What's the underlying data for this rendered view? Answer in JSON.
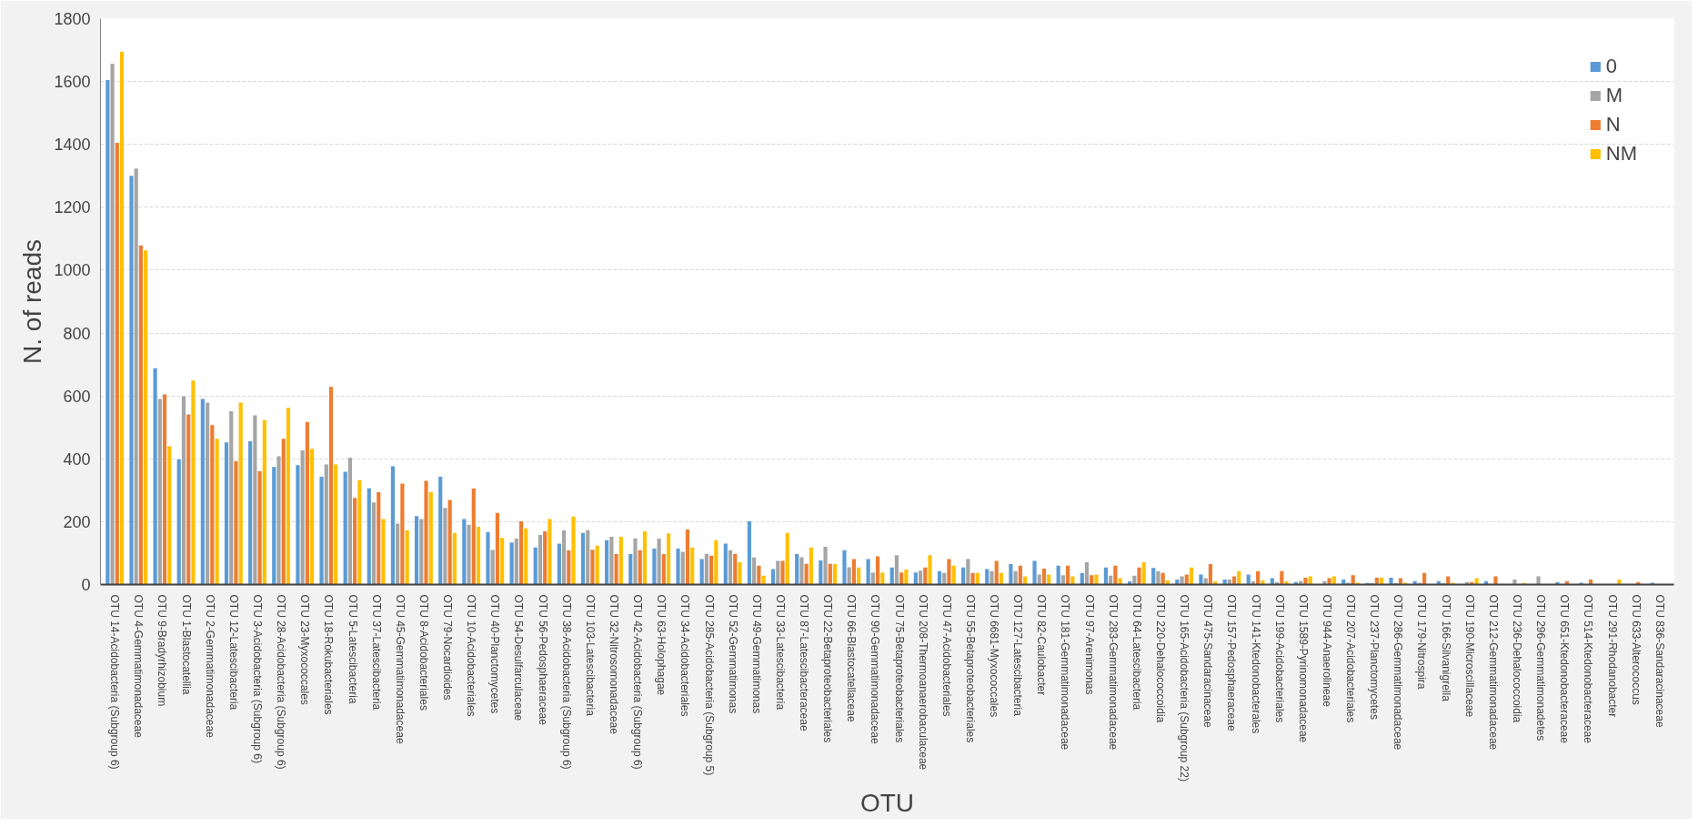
{
  "chart_data": {
    "type": "bar",
    "xlabel": "OTU",
    "ylabel": "N. of reads",
    "ylim": [
      0,
      1800
    ],
    "yticks": [
      0,
      200,
      400,
      600,
      800,
      1000,
      1200,
      1400,
      1600,
      1800
    ],
    "grid": "y",
    "legend": "top right",
    "categories": [
      "OTU 14-Acidobacteria (Subgroup 6)",
      "OTU 4-Gemmatimonadaceae",
      "OTU 9-Bradyrhizobium",
      "OTU 1-Blastocatellia",
      "OTU 2-Gemmatimonadaceae",
      "OTU 12-Latescibacteria",
      "OTU 3-Acidobacteria (Subgroup 6)",
      "OTU 28-Acidobacteria (Subgroup 6)",
      "OTU 23-Myxococcales",
      "OTU 18-Rokubacteriales",
      "OTU 5-Latescibacteria",
      "OTU 37-Latescibacteria",
      "OTU 45-Gemmatimonadaceae",
      "OTU 8-Acidobacteriales",
      "OTU 79-Nocardioides",
      "OTU 10-Acidobacteriales",
      "OTU 40-Planctomycetes",
      "OTU 54-Desulfarculaceae",
      "OTU 56-Pedosphaeraceae",
      "OTU 38-Acidobacteria (Subgroup 6)",
      "OTU 103-Latescibacteria",
      "OTU 32-Nitrosomonadaceae",
      "OTU 42-Acidobacteria (Subgroup 6)",
      "OTU 63-Holophagae",
      "OTU 34-Acidobacteriales",
      "OTU 285-Acidobacteria (Subgroup 5)",
      "OTU 52-Gemmatimonas",
      "OTU 49-Gemmatimonas",
      "OTU 33-Latescibacteria",
      "OTU 87-Latescibacteraceae",
      "OTU 22-Betaproteobacteriales",
      "OTU 66-Blastocatellaceae",
      "OTU 90-Gemmatimonadaceae",
      "OTU 75-Betaproteobacteriales",
      "OTU 208-Thermoanaerobaculaceae",
      "OTU 47-Acidobacteriales",
      "OTU 55-Betaproteobacteriales",
      "OTU 6681-Myxococcales",
      "OTU 127-Latescibacteria",
      "OTU 82-Caulobacter",
      "OTU 181-Gemmatimonadaceae",
      "OTU 97-Arenimonas",
      "OTU 283-Gemmatimonadaceae",
      "OTU 64-Latescibacteria",
      "OTU 220-Dehalococcoidia",
      "OTU 165-Acidobacteria (Subgroup 22)",
      "OTU 475-Sandaracinaceae",
      "OTU 157-Pedosphaeraceae",
      "OTU 141-Ktedonobacterales",
      "OTU 199-Acidobacteriales",
      "OTU 1589-Pyrinomonadaceae",
      "OTU 944-Anaerolineae",
      "OTU 207-Acidobacteriales",
      "OTU 237-Planctomycetes",
      "OTU 286-Gemmatimonadaceae",
      "OTU 179-Nitrospira",
      "OTU 166-Silvanigrella",
      "OTU 190-Microscillaceae",
      "OTU 212-Gemmatimonadaceae",
      "OTU 236-Dehalococcoidia",
      "OTU 296-Gemmatimonadetes",
      "OTU 651-Ktedonobacteraceae",
      "OTU 514-Ktedonobacteraceae",
      "OTU 291-Rhodanobacter",
      "OTU 633-Alterococcus",
      "OTU 836-Sandaracinaceae"
    ],
    "series": [
      {
        "name": "0",
        "color": "#5b9bd5",
        "values": [
          1605,
          1300,
          688,
          398,
          590,
          452,
          456,
          374,
          380,
          343,
          359,
          306,
          376,
          218,
          343,
          208,
          167,
          134,
          118,
          130,
          164,
          141,
          97,
          114,
          114,
          81,
          130,
          201,
          49,
          97,
          77,
          109,
          81,
          54,
          38,
          43,
          54,
          49,
          65,
          75,
          60,
          37,
          54,
          10,
          53,
          16,
          32,
          16,
          32,
          20,
          8,
          0,
          16,
          5,
          22,
          11,
          11,
          0,
          11,
          0,
          0,
          8,
          6,
          0,
          0,
          6
        ]
      },
      {
        "name": "M",
        "color": "#a5a5a5",
        "values": [
          1657,
          1323,
          590,
          598,
          579,
          551,
          538,
          408,
          427,
          382,
          403,
          261,
          194,
          208,
          244,
          190,
          110,
          146,
          158,
          172,
          173,
          152,
          147,
          146,
          104,
          98,
          109,
          86,
          75,
          87,
          120,
          55,
          38,
          93,
          44,
          37,
          81,
          43,
          43,
          32,
          30,
          71,
          28,
          28,
          43,
          26,
          20,
          16,
          10,
          7,
          11,
          11,
          6,
          5,
          5,
          6,
          5,
          8,
          0,
          16,
          26,
          0,
          0,
          0,
          0,
          0
        ]
      },
      {
        "name": "N",
        "color": "#ed7d31",
        "values": [
          1405,
          1079,
          605,
          541,
          507,
          392,
          360,
          464,
          517,
          629,
          276,
          294,
          321,
          330,
          269,
          305,
          228,
          201,
          169,
          109,
          111,
          97,
          109,
          97,
          175,
          92,
          98,
          60,
          75,
          66,
          66,
          81,
          90,
          38,
          54,
          81,
          37,
          75,
          60,
          51,
          60,
          30,
          60,
          54,
          37,
          32,
          65,
          26,
          43,
          43,
          22,
          20,
          30,
          22,
          20,
          37,
          26,
          8,
          26,
          0,
          0,
          11,
          16,
          0,
          8,
          0
        ]
      },
      {
        "name": "NM",
        "color": "#ffc000",
        "values": [
          1695,
          1063,
          440,
          649,
          464,
          579,
          523,
          562,
          432,
          382,
          332,
          208,
          173,
          294,
          164,
          184,
          148,
          179,
          208,
          216,
          124,
          152,
          169,
          163,
          118,
          141,
          71,
          28,
          164,
          118,
          65,
          54,
          38,
          48,
          93,
          60,
          37,
          37,
          26,
          32,
          26,
          31,
          20,
          71,
          13,
          54,
          10,
          43,
          13,
          10,
          26,
          26,
          6,
          22,
          6,
          0,
          6,
          20,
          0,
          5,
          0,
          0,
          0,
          16,
          0,
          0
        ]
      }
    ]
  }
}
